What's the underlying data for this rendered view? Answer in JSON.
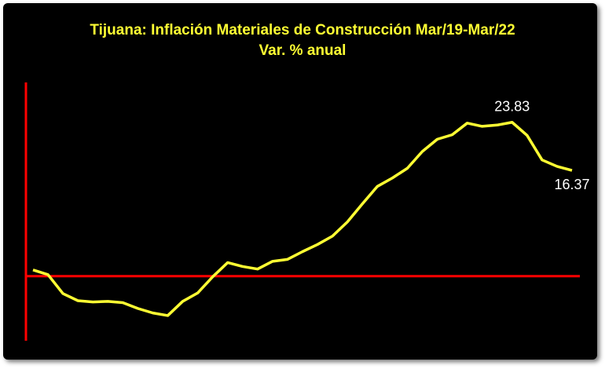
{
  "chart_data": {
    "type": "line",
    "title": "Tijuana: Inflación Materiales de Construcción Mar/19-Mar/22",
    "subtitle": "Var. % anual",
    "series": [
      {
        "color": "#ffff33",
        "values": [
          0.97,
          0.24,
          -2.7,
          -3.8,
          -4.0,
          -3.9,
          -4.1,
          -5.0,
          -5.7,
          -6.1,
          -3.9,
          -2.6,
          -0.1,
          2.1,
          1.5,
          1.1,
          2.3,
          2.6,
          3.8,
          4.9,
          6.2,
          8.4,
          11.2,
          13.9,
          15.2,
          16.7,
          19.3,
          21.2,
          21.9,
          23.7,
          23.2,
          23.4,
          23.83,
          21.8,
          18.0,
          17.0,
          16.37
        ]
      }
    ],
    "ylim": [
      -10,
      30
    ],
    "axis_color": "#ff0000"
  }
}
